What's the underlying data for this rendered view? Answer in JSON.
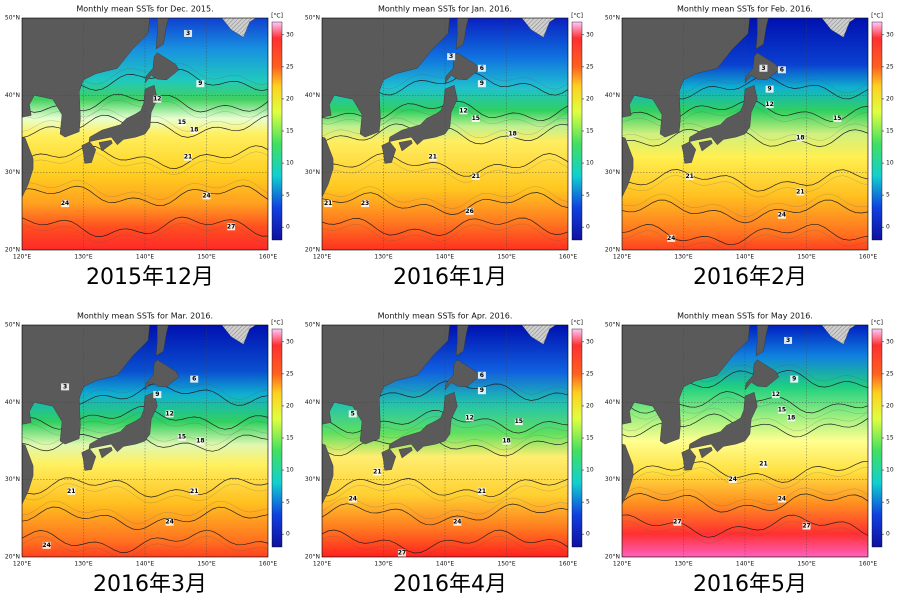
{
  "panels": [
    {
      "title": "Monthly mean SSTs for Dec. 2015.",
      "caption": "2015年12月",
      "contour_labels": [
        3,
        9,
        12,
        15,
        18,
        21,
        24,
        24,
        27
      ]
    },
    {
      "title": "Monthly mean SSTs for Jan. 2016.",
      "caption": "2016年1月",
      "contour_labels": [
        3,
        6,
        9,
        12,
        15,
        18,
        21,
        21,
        21,
        23,
        26
      ]
    },
    {
      "title": "Monthly mean SSTs for Feb. 2016.",
      "caption": "2016年2月",
      "contour_labels": [
        3,
        6,
        9,
        12,
        15,
        18,
        21,
        21,
        24,
        24
      ]
    },
    {
      "title": "Monthly mean SSTs for Mar. 2016.",
      "caption": "2016年3月",
      "contour_labels": [
        3,
        6,
        9,
        12,
        15,
        18,
        21,
        21,
        24,
        24
      ]
    },
    {
      "title": "Monthly mean SSTs for Apr. 2016.",
      "caption": "2016年4月",
      "contour_labels": [
        5,
        6,
        9,
        12,
        15,
        18,
        21,
        21,
        24,
        24,
        27
      ]
    },
    {
      "title": "Monthly mean SSTs for May 2016.",
      "caption": "2016年5月",
      "contour_labels": [
        3,
        9,
        12,
        15,
        18,
        21,
        24,
        24,
        27,
        27
      ]
    }
  ],
  "map": {
    "xlim": [
      120,
      160
    ],
    "ylim": [
      20,
      50
    ],
    "lon_ticks": [
      {
        "value": 120,
        "label": "120°E"
      },
      {
        "value": 130,
        "label": "130°E"
      },
      {
        "value": 140,
        "label": "140°E"
      },
      {
        "value": 150,
        "label": "150°E"
      },
      {
        "value": 160,
        "label": "160°E"
      }
    ],
    "lat_ticks": [
      {
        "value": 20,
        "label": "20°N"
      },
      {
        "value": 30,
        "label": "30°N"
      },
      {
        "value": 40,
        "label": "40°N"
      },
      {
        "value": 50,
        "label": "50°N"
      }
    ]
  },
  "colorbar": {
    "unit": "[°C]",
    "ylim": [
      -2,
      32
    ],
    "yticks": [
      0,
      5,
      10,
      15,
      20,
      25,
      30
    ]
  }
}
